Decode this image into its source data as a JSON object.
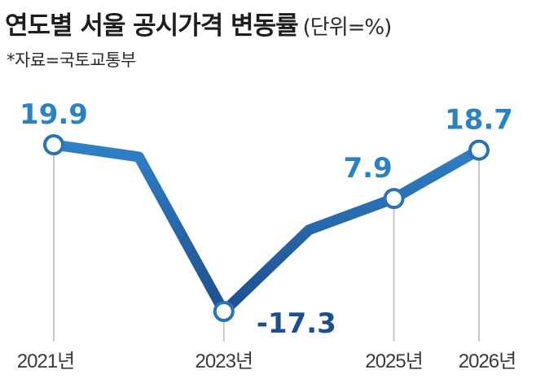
{
  "header": {
    "title": "연도별 서울 공시가격 변동률",
    "unit": "(단위=%)",
    "source": "*자료=국토교통부"
  },
  "colors": {
    "line_dark": "#1f4e8c",
    "line_light": "#2f80c7",
    "label_positive": "#2a82c4",
    "label_negative": "#1b4f8f",
    "marker_fill": "#ffffff",
    "marker_stroke": "#2a72b8",
    "drop_line": "#c8c8c8"
  },
  "chart_data": {
    "type": "line",
    "title": "연도별 서울 공시가격 변동률",
    "unit": "%",
    "ylim": [
      -20,
      22
    ],
    "x": [
      2021,
      2022,
      2023,
      2024,
      2025,
      2026
    ],
    "values": [
      19.9,
      17.2,
      -17.3,
      0.9,
      7.9,
      18.7
    ],
    "point_labels": [
      {
        "index": 0,
        "text": "19.9",
        "sign": "positive"
      },
      {
        "index": 2,
        "text": "-17.3",
        "sign": "negative"
      },
      {
        "index": 4,
        "text": "7.9",
        "sign": "positive"
      },
      {
        "index": 5,
        "text": "18.7",
        "sign": "positive"
      }
    ],
    "x_tick_labels": [
      {
        "index": 0,
        "text": "2021년"
      },
      {
        "index": 2,
        "text": "2023년"
      },
      {
        "index": 4,
        "text": "2025년"
      },
      {
        "index": 5,
        "text": "2026년"
      }
    ],
    "grid": false,
    "legend": "none"
  }
}
